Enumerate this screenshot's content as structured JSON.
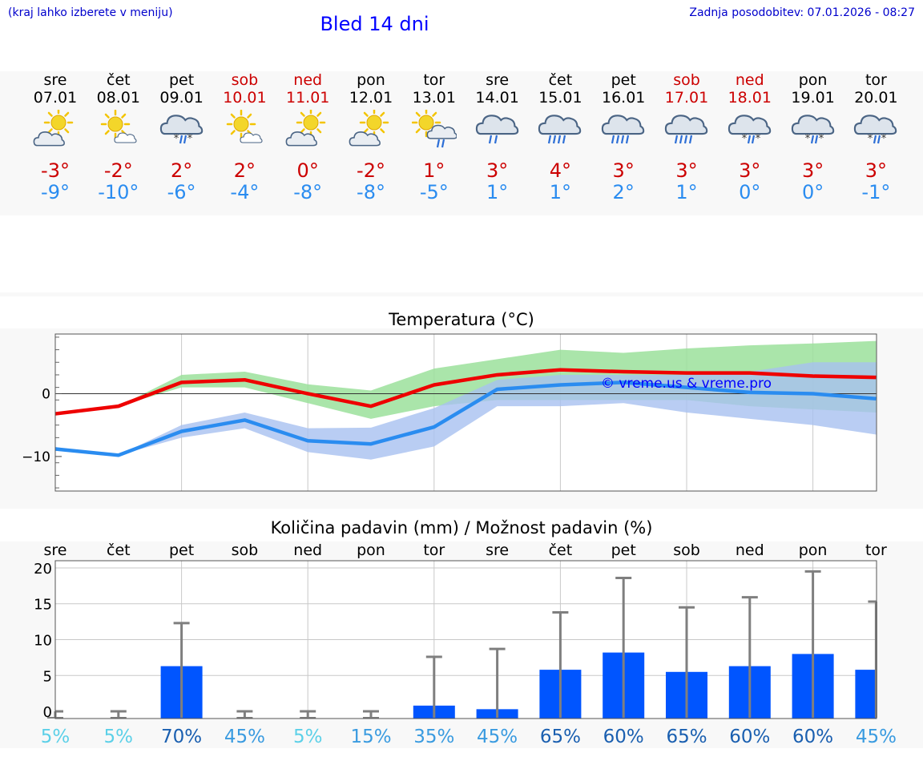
{
  "header": {
    "location_hint": "(kraj lahko izberete v meniju)",
    "title": "Bled 14 dni",
    "last_update": "Zadnja posodobitev: 07.01.2026 - 08:27"
  },
  "colors": {
    "weekday": "#000000",
    "weekend": "#cc0000",
    "max_temp": "#cc0000",
    "min_temp": "#2a8cf0",
    "max_line": "#ee0000",
    "max_band": "#9be19b",
    "min_line": "#2a8cf0",
    "min_band": "#a8c0f0",
    "bar": "#0055ff"
  },
  "forecast": {
    "days": [
      {
        "name": "sre",
        "date": "07.01",
        "weekend": false,
        "icon": "partly-cloudy-sun-icon",
        "max": "-3°",
        "min": "-9°"
      },
      {
        "name": "čet",
        "date": "08.01",
        "weekend": false,
        "icon": "mostly-sunny-icon",
        "max": "-2°",
        "min": "-10°"
      },
      {
        "name": "pet",
        "date": "09.01",
        "weekend": false,
        "icon": "cloud-sleet-icon",
        "max": "2°",
        "min": "-6°"
      },
      {
        "name": "sob",
        "date": "10.01",
        "weekend": true,
        "icon": "mostly-sunny-icon",
        "max": "2°",
        "min": "-4°"
      },
      {
        "name": "ned",
        "date": "11.01",
        "weekend": true,
        "icon": "partly-cloudy-sun-icon",
        "max": "0°",
        "min": "-8°"
      },
      {
        "name": "pon",
        "date": "12.01",
        "weekend": false,
        "icon": "partly-cloudy-sun-icon",
        "max": "-2°",
        "min": "-8°"
      },
      {
        "name": "tor",
        "date": "13.01",
        "weekend": false,
        "icon": "sun-cloud-rain-icon",
        "max": "1°",
        "min": "-5°"
      },
      {
        "name": "sre",
        "date": "14.01",
        "weekend": false,
        "icon": "cloud-rain-light-icon",
        "max": "3°",
        "min": "1°"
      },
      {
        "name": "čet",
        "date": "15.01",
        "weekend": false,
        "icon": "cloud-rain-icon",
        "max": "4°",
        "min": "1°"
      },
      {
        "name": "pet",
        "date": "16.01",
        "weekend": false,
        "icon": "cloud-rain-icon",
        "max": "3°",
        "min": "2°"
      },
      {
        "name": "sob",
        "date": "17.01",
        "weekend": true,
        "icon": "cloud-rain-icon",
        "max": "3°",
        "min": "1°"
      },
      {
        "name": "ned",
        "date": "18.01",
        "weekend": true,
        "icon": "cloud-sleet-icon",
        "max": "3°",
        "min": "0°"
      },
      {
        "name": "pon",
        "date": "19.01",
        "weekend": false,
        "icon": "cloud-sleet-icon",
        "max": "3°",
        "min": "0°"
      },
      {
        "name": "tor",
        "date": "20.01",
        "weekend": false,
        "icon": "cloud-sleet-icon",
        "max": "3°",
        "min": "-1°"
      }
    ]
  },
  "chart_data": [
    {
      "type": "line",
      "title": "Temperatura (°C)",
      "watermark": "© vreme.us & vreme.pro",
      "x": [
        "07.01",
        "08.01",
        "09.01",
        "10.01",
        "11.01",
        "12.01",
        "13.01",
        "14.01",
        "15.01",
        "16.01",
        "17.01",
        "18.01",
        "19.01",
        "20.01"
      ],
      "ylim": [
        -15.5,
        9.5
      ],
      "yticks": [
        0,
        -10
      ],
      "series": [
        {
          "name": "max",
          "values": [
            -3.2,
            -2,
            1.8,
            2.2,
            0,
            -2,
            1.4,
            3,
            3.8,
            3.5,
            3.3,
            3.3,
            2.8,
            2.6
          ],
          "band_low": [
            -3,
            -2,
            1,
            1,
            -1.5,
            -4,
            -2,
            -1,
            -1,
            -1,
            -1,
            -2,
            -2.5,
            -3
          ],
          "band_high": [
            -3,
            -2,
            3,
            3.5,
            1.5,
            0.5,
            4,
            5.5,
            7,
            6.5,
            7.2,
            7.7,
            8,
            8.4
          ]
        },
        {
          "name": "min",
          "values": [
            -8.8,
            -9.8,
            -6,
            -4.2,
            -7.5,
            -8,
            -5.3,
            0.7,
            1.4,
            1.8,
            1,
            0.2,
            0,
            -0.8
          ],
          "band_low": [
            -9,
            -9.8,
            -7,
            -5.5,
            -9.3,
            -10.5,
            -8.4,
            -2,
            -2,
            -1.5,
            -3,
            -4,
            -5,
            -6.5
          ],
          "band_high": [
            -8.5,
            -9.8,
            -5,
            -3,
            -5.5,
            -5.4,
            -2.3,
            2.2,
            3,
            3,
            3,
            3.5,
            5,
            5
          ]
        }
      ]
    },
    {
      "type": "bar",
      "title": "Količina padavin (mm) / Možnost padavin (%)",
      "categories": [
        "sre",
        "čet",
        "pet",
        "sob",
        "ned",
        "pon",
        "tor",
        "sre",
        "čet",
        "pet",
        "sob",
        "ned",
        "pon",
        "tor"
      ],
      "values": [
        0,
        0,
        6.3,
        0,
        0,
        0,
        0.8,
        0.3,
        5.8,
        8.2,
        5.5,
        6.3,
        8,
        5.8
      ],
      "error_high": [
        0,
        0,
        12.3,
        0,
        0,
        0,
        7.6,
        8.7,
        13.8,
        18.6,
        14.5,
        15.9,
        19.5,
        15.3
      ],
      "ylim": [
        -1,
        21
      ],
      "yticks": [
        0,
        5,
        10,
        15,
        20
      ],
      "probability": [
        "5%",
        "5%",
        "70%",
        "45%",
        "5%",
        "15%",
        "35%",
        "45%",
        "65%",
        "60%",
        "65%",
        "60%",
        "60%",
        "45%"
      ]
    }
  ]
}
